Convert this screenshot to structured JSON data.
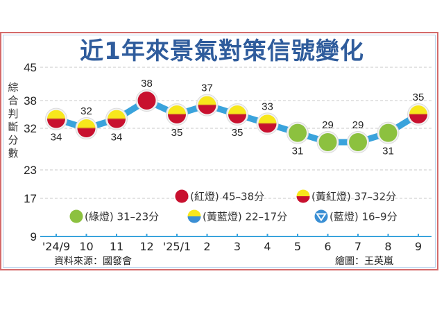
{
  "title": "近1年來景氣對策信號變化",
  "y_axis_label": "綜合判斷分數",
  "source": "資料來源：國發會",
  "credit": "繪圖：王英嵐",
  "colors": {
    "title": "#2f5c9c",
    "line": "#3aa3dc",
    "red": "#c8102e",
    "yellow": "#f7e71c",
    "green": "#8cc13f",
    "blue": "#3a8fd4",
    "frame": "#d46a6a",
    "axis": "#3aa3dc"
  },
  "legend": [
    {
      "signal": "red",
      "label": "(紅燈) 45–38分"
    },
    {
      "signal": "yellow-red",
      "label": "(黃紅燈) 37–32分"
    },
    {
      "signal": "green",
      "label": "(綠燈) 31–23分"
    },
    {
      "signal": "yellow-blue",
      "label": "(黃藍燈) 22–17分"
    },
    {
      "signal": "blue",
      "label": "(藍燈) 16–9分"
    }
  ],
  "chart_data": {
    "type": "line",
    "title": "近1年來景氣對策信號變化",
    "xlabel": "",
    "ylabel": "綜合判斷分數",
    "categories": [
      "'24/9",
      "10",
      "11",
      "12",
      "'25/1",
      "2",
      "3",
      "4",
      "5",
      "6",
      "7",
      "8",
      "9"
    ],
    "values": [
      34,
      32,
      34,
      38,
      35,
      37,
      35,
      33,
      31,
      29,
      29,
      31,
      35
    ],
    "signals": [
      "yellow-red",
      "yellow-red",
      "yellow-red",
      "red",
      "yellow-red",
      "yellow-red",
      "yellow-red",
      "yellow-red",
      "green",
      "green",
      "green",
      "green",
      "yellow-red"
    ],
    "label_position": [
      "below",
      "above",
      "below",
      "above",
      "below",
      "above",
      "below",
      "above",
      "below",
      "above",
      "above",
      "below",
      "above"
    ],
    "y_ticks": [
      9,
      17,
      23,
      32,
      38,
      45
    ],
    "ylim": [
      9,
      45
    ],
    "grid": true,
    "legend_position": "inside-bottom"
  }
}
